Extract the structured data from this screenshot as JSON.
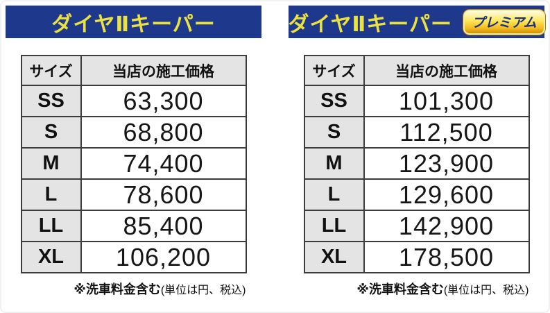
{
  "colors": {
    "title_bar_blue": "#1e398c",
    "title_text_yellow": "#ebe141",
    "badge_gold_light": "#fffce4",
    "badge_gold_dark": "#cf9200",
    "badge_text_blue": "#16307e",
    "cell_gray": "#e4e4e4",
    "table_border": "#3c3c3c",
    "page_bg": "#ffffff"
  },
  "panels": [
    {
      "title": "ダイヤⅡキーパー",
      "table": {
        "headers": [
          "サイズ",
          "当店の施工価格"
        ],
        "rows": [
          {
            "size": "SS",
            "price": "63,300"
          },
          {
            "size": "S",
            "price": "68,800"
          },
          {
            "size": "M",
            "price": "74,400"
          },
          {
            "size": "L",
            "price": "78,600"
          },
          {
            "size": "LL",
            "price": "85,400"
          },
          {
            "size": "XL",
            "price": "106,200"
          }
        ]
      },
      "footnote_bold": "※洗車料金含む",
      "footnote_normal": "(単位は円、税込)"
    },
    {
      "title": "ダイヤⅡキーパー",
      "badge": "プレミアム",
      "table": {
        "headers": [
          "サイズ",
          "当店の施工価格"
        ],
        "rows": [
          {
            "size": "SS",
            "price": "101,300"
          },
          {
            "size": "S",
            "price": "112,500"
          },
          {
            "size": "M",
            "price": "123,900"
          },
          {
            "size": "L",
            "price": "129,600"
          },
          {
            "size": "LL",
            "price": "142,900"
          },
          {
            "size": "XL",
            "price": "178,500"
          }
        ]
      },
      "footnote_bold": "※洗車料金含む",
      "footnote_normal": "(単位は円、税込)"
    }
  ],
  "chart_data": [
    {
      "type": "table",
      "title": "ダイヤⅡキーパー",
      "columns": [
        "サイズ",
        "当店の施工価格"
      ],
      "rows": [
        [
          "SS",
          63300
        ],
        [
          "S",
          68800
        ],
        [
          "M",
          74400
        ],
        [
          "L",
          78600
        ],
        [
          "LL",
          85400
        ],
        [
          "XL",
          106200
        ]
      ],
      "footnote": "※洗車料金含む(単位は円、税込)"
    },
    {
      "type": "table",
      "title": "ダイヤⅡキーパー プレミアム",
      "columns": [
        "サイズ",
        "当店の施工価格"
      ],
      "rows": [
        [
          "SS",
          101300
        ],
        [
          "S",
          112500
        ],
        [
          "M",
          123900
        ],
        [
          "L",
          129600
        ],
        [
          "LL",
          142900
        ],
        [
          "XL",
          178500
        ]
      ],
      "footnote": "※洗車料金含む(単位は円、税込)"
    }
  ]
}
